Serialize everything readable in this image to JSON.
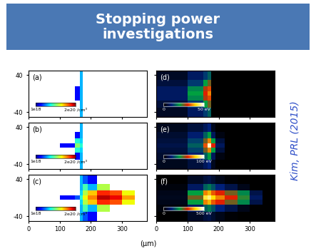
{
  "title": "Stopping power\ninvestigations",
  "citation": "Kim, PRL (2015)",
  "xlabel": "(μm)",
  "chart_data": [
    {
      "type": "heatmap",
      "title": "(a)",
      "log": true,
      "tick_labels": "y",
      "xlim": [
        0,
        380
      ],
      "xticks": [
        0,
        100,
        200,
        300
      ],
      "ylim": [
        -50,
        50
      ],
      "yticks": [
        -40,
        40
      ],
      "x_edges": [
        0,
        100,
        150,
        165,
        175,
        190,
        220,
        260,
        300,
        340,
        380
      ],
      "y_edges": [
        -50,
        -30,
        -15,
        -5,
        5,
        15,
        30,
        50
      ],
      "cells": [
        [
          null,
          null,
          null,
          5e+18,
          null,
          null,
          null,
          null,
          null,
          null
        ],
        [
          null,
          null,
          null,
          5e+18,
          null,
          null,
          null,
          null,
          null,
          null
        ],
        [
          null,
          null,
          2e+18,
          5e+18,
          null,
          null,
          null,
          null,
          null,
          null
        ],
        [
          null,
          null,
          2e+18,
          5e+18,
          null,
          null,
          null,
          null,
          null,
          null
        ],
        [
          null,
          null,
          2e+18,
          5e+18,
          null,
          null,
          null,
          null,
          null,
          null
        ],
        [
          null,
          null,
          null,
          5e+18,
          null,
          null,
          null,
          null,
          null,
          null
        ],
        [
          null,
          null,
          null,
          5e+18,
          null,
          null,
          null,
          null,
          null,
          null
        ]
      ],
      "colorbar": {
        "range": [
          1e+18,
          2e+20
        ],
        "ticks": [
          {
            "value": 1e+18,
            "label": "1e18"
          },
          {
            "value": 2e+20,
            "label": "2e20 /cm³"
          }
        ]
      }
    },
    {
      "type": "heatmap",
      "title": "(b)",
      "log": true,
      "tick_labels": "y",
      "xlim": [
        0,
        380
      ],
      "xticks": [
        0,
        100,
        200,
        300
      ],
      "ylim": [
        -50,
        50
      ],
      "yticks": [
        -40,
        40
      ],
      "x_edges": [
        0,
        100,
        150,
        165,
        175,
        190,
        220,
        260,
        300,
        340,
        380
      ],
      "y_edges": [
        -50,
        -30,
        -15,
        -5,
        5,
        15,
        30,
        50
      ],
      "cells": [
        [
          null,
          null,
          null,
          5e+18,
          null,
          null,
          null,
          null,
          null,
          null
        ],
        [
          null,
          null,
          2e+18,
          5e+18,
          null,
          null,
          null,
          null,
          null,
          null
        ],
        [
          null,
          null,
          8e+18,
          6e+18,
          null,
          null,
          null,
          null,
          null,
          null
        ],
        [
          null,
          2e+18,
          1.5e+19,
          8e+18,
          null,
          null,
          null,
          null,
          null,
          null
        ],
        [
          null,
          null,
          8e+18,
          6e+18,
          null,
          null,
          null,
          null,
          null,
          null
        ],
        [
          null,
          null,
          2e+18,
          5e+18,
          null,
          null,
          null,
          null,
          null,
          null
        ],
        [
          null,
          null,
          null,
          5e+18,
          null,
          null,
          null,
          null,
          null,
          null
        ]
      ],
      "colorbar": {
        "range": [
          1e+18,
          2e+20
        ],
        "ticks": [
          {
            "value": 1e+18,
            "label": "1e18"
          },
          {
            "value": 2e+20,
            "label": "2e20 /cm³"
          }
        ]
      }
    },
    {
      "type": "heatmap",
      "title": "(c)",
      "log": true,
      "xlim": [
        0,
        380
      ],
      "xticks": [
        0,
        100,
        200,
        300
      ],
      "ylim": [
        -50,
        50
      ],
      "yticks": [
        -40,
        40
      ],
      "x_edges": [
        0,
        100,
        150,
        165,
        175,
        190,
        220,
        260,
        300,
        340,
        380
      ],
      "y_edges": [
        -50,
        -30,
        -15,
        -5,
        5,
        15,
        30,
        50
      ],
      "cells": [
        [
          null,
          null,
          null,
          5e+18,
          3e+18,
          2e+18,
          null,
          null,
          null,
          null
        ],
        [
          null,
          null,
          null,
          5e+18,
          1e+19,
          5e+18,
          2e+19,
          null,
          null,
          null
        ],
        [
          null,
          null,
          null,
          6e+18,
          2e+19,
          4e+19,
          1e+20,
          8e+19,
          3e+19,
          null
        ],
        [
          null,
          2e+18,
          3e+18,
          8e+18,
          3e+19,
          6e+19,
          1.5e+20,
          1.2e+20,
          5e+19,
          null
        ],
        [
          null,
          null,
          null,
          6e+18,
          2e+19,
          4e+19,
          1e+20,
          8e+19,
          3e+19,
          null
        ],
        [
          null,
          null,
          null,
          5e+18,
          1e+19,
          5e+18,
          2e+19,
          null,
          null,
          null
        ],
        [
          null,
          null,
          null,
          5e+18,
          3e+18,
          2e+18,
          null,
          null,
          null,
          null
        ]
      ],
      "colorbar": {
        "range": [
          1e+18,
          2e+20
        ],
        "ticks": [
          {
            "value": 1e+18,
            "label": "1e18"
          },
          {
            "value": 2e+20,
            "label": "2e20 /cm³"
          }
        ]
      }
    },
    {
      "type": "heatmap",
      "title": "(d)",
      "tick_labels": false,
      "xlim": [
        0,
        380
      ],
      "xticks": [
        0,
        100,
        200,
        300
      ],
      "ylim": [
        -50,
        50
      ],
      "yticks": [
        -40,
        40
      ],
      "x_edges": [
        0,
        100,
        150,
        165,
        175,
        190,
        220,
        260,
        300,
        340,
        380
      ],
      "y_edges": [
        -50,
        -30,
        -15,
        -5,
        5,
        15,
        30,
        50
      ],
      "cells": [
        [
          3,
          8,
          12,
          15,
          0,
          0,
          0,
          0,
          0,
          0
        ],
        [
          5,
          12,
          20,
          25,
          0,
          0,
          0,
          0,
          0,
          0
        ],
        [
          8,
          18,
          28,
          32,
          0,
          0,
          0,
          0,
          0,
          0
        ],
        [
          8,
          20,
          30,
          35,
          0,
          0,
          0,
          0,
          0,
          0
        ],
        [
          8,
          18,
          28,
          32,
          0,
          0,
          0,
          0,
          0,
          0
        ],
        [
          5,
          12,
          20,
          25,
          0,
          0,
          0,
          0,
          0,
          0
        ],
        [
          3,
          8,
          12,
          15,
          0,
          0,
          0,
          0,
          0,
          0
        ]
      ],
      "colorbar": {
        "range": [
          0,
          50
        ],
        "ticks": [
          0,
          {
            "value": 50,
            "label": "50 eV"
          }
        ]
      }
    },
    {
      "type": "heatmap",
      "title": "(e)",
      "tick_labels": false,
      "xlim": [
        0,
        380
      ],
      "xticks": [
        0,
        100,
        200,
        300
      ],
      "ylim": [
        -50,
        50
      ],
      "yticks": [
        -40,
        40
      ],
      "x_edges": [
        0,
        100,
        150,
        165,
        175,
        190,
        220,
        260,
        300,
        340,
        380
      ],
      "y_edges": [
        -50,
        -30,
        -15,
        -5,
        5,
        15,
        30,
        50
      ],
      "cells": [
        [
          5,
          10,
          15,
          20,
          5,
          0,
          0,
          0,
          0,
          0
        ],
        [
          8,
          18,
          30,
          40,
          15,
          3,
          0,
          0,
          0,
          0
        ],
        [
          10,
          25,
          50,
          70,
          40,
          10,
          0,
          0,
          0,
          0
        ],
        [
          12,
          30,
          65,
          95,
          60,
          15,
          0,
          0,
          0,
          0
        ],
        [
          10,
          25,
          50,
          70,
          40,
          10,
          0,
          0,
          0,
          0
        ],
        [
          8,
          18,
          30,
          40,
          15,
          3,
          0,
          0,
          0,
          0
        ],
        [
          5,
          10,
          15,
          20,
          5,
          0,
          0,
          0,
          0,
          0
        ]
      ],
      "colorbar": {
        "range": [
          0,
          100
        ],
        "ticks": [
          0,
          {
            "value": 100,
            "label": "100 eV"
          }
        ]
      }
    },
    {
      "type": "heatmap",
      "title": "(f)",
      "tick_labels": "x",
      "xlim": [
        0,
        380
      ],
      "xticks": [
        0,
        100,
        200,
        300
      ],
      "ylim": [
        -50,
        50
      ],
      "yticks": [
        -40,
        40
      ],
      "x_edges": [
        0,
        100,
        150,
        165,
        175,
        190,
        220,
        260,
        300,
        340,
        380
      ],
      "y_edges": [
        -50,
        -30,
        -15,
        -5,
        5,
        15,
        30,
        50
      ],
      "cells": [
        [
          0,
          30,
          50,
          60,
          40,
          20,
          5,
          0,
          0,
          0
        ],
        [
          10,
          80,
          150,
          170,
          140,
          100,
          60,
          20,
          0,
          0
        ],
        [
          20,
          200,
          350,
          380,
          330,
          300,
          250,
          180,
          60,
          0
        ],
        [
          25,
          250,
          420,
          450,
          400,
          350,
          300,
          220,
          80,
          0
        ],
        [
          20,
          200,
          350,
          380,
          330,
          300,
          250,
          180,
          60,
          0
        ],
        [
          10,
          80,
          150,
          170,
          140,
          100,
          60,
          20,
          0,
          0
        ],
        [
          0,
          30,
          50,
          60,
          40,
          20,
          5,
          0,
          0,
          0
        ]
      ],
      "colorbar": {
        "range": [
          0,
          500
        ],
        "ticks": [
          0,
          {
            "value": 500,
            "label": "500 eV"
          }
        ]
      }
    }
  ]
}
